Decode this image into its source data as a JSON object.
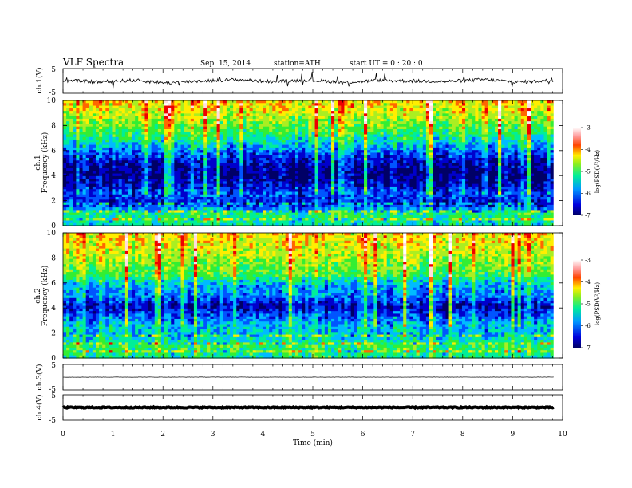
{
  "header": {
    "title": "VLF  Spectra",
    "date": "Sep. 15, 2014",
    "station": "station=ATH",
    "start": "start  UT  =    0  : 20 : 0"
  },
  "colors": {
    "colormap": [
      "#000066",
      "#0000cc",
      "#0055ff",
      "#00bbff",
      "#00ee99",
      "#33ee33",
      "#aaee22",
      "#ffee00",
      "#ff6600",
      "#ee0000",
      "#ffdddd",
      "#ffffff"
    ]
  },
  "chart_data": [
    {
      "type": "line",
      "ylabel": "ch.1(V)",
      "ylim": [
        -5,
        5
      ],
      "yticks": [
        "5",
        "-5"
      ],
      "series": [
        {
          "values": [
            0.2,
            -0.4,
            0.3,
            -0.8,
            0.1,
            0.5,
            -0.3,
            0.4,
            -0.6,
            0.2,
            0.0,
            -0.2,
            0.6,
            -0.5,
            0.3
          ]
        }
      ]
    },
    {
      "type": "heatmap",
      "ylabel_lines": [
        "ch.1",
        "Frequency (kHz)"
      ],
      "ylim": [
        0,
        10
      ],
      "yticks": [
        "0",
        "2",
        "4",
        "6",
        "8",
        "10"
      ],
      "colorbar": {
        "label": "log(PSD(V²/Hz)",
        "ticks": [
          "-3",
          "-4",
          "-5",
          "-6",
          "-7"
        ],
        "range": [
          -7,
          -3
        ]
      },
      "freq_profile_logPSD": [
        -5.6,
        -5.4,
        -6.5,
        -6.2,
        -6.6,
        -6.8,
        -6.6,
        -6.2,
        -5.7,
        -5.3,
        -5.0,
        -4.7,
        -4.5
      ]
    },
    {
      "type": "heatmap",
      "ylabel_lines": [
        "ch.2",
        "Frequency (kHz)"
      ],
      "ylim": [
        0,
        10
      ],
      "yticks": [
        "0",
        "2",
        "4",
        "6",
        "8",
        "10"
      ],
      "colorbar": {
        "label": "log(PSD(V²/Hz)",
        "ticks": [
          "-3",
          "-4",
          "-5",
          "-6",
          "-7"
        ],
        "range": [
          -7,
          -3
        ]
      },
      "freq_profile_logPSD": [
        -5.5,
        -5.3,
        -5.8,
        -5.8,
        -6.2,
        -6.6,
        -6.0,
        -5.9,
        -5.2,
        -5.0,
        -4.8,
        -4.6,
        -4.5
      ]
    },
    {
      "type": "line",
      "ylabel": "ch.3(V)",
      "ylim": [
        -5,
        5
      ],
      "yticks": [
        "5",
        "-5"
      ],
      "series": [
        {
          "values": [
            0.0,
            0.0,
            0.0,
            0.0,
            0.0,
            0.0,
            0.0,
            0.0,
            0.0,
            0.0
          ]
        }
      ]
    },
    {
      "type": "line",
      "ylabel": "ch.4(V)",
      "ylim": [
        -5,
        5
      ],
      "yticks": [
        "5",
        "-5"
      ],
      "series": [
        {
          "values": [
            0.0,
            0.0,
            0.0,
            0.0,
            0.0,
            0.0,
            0.0,
            0.0,
            0.0,
            0.0
          ]
        }
      ]
    }
  ],
  "xaxis": {
    "label": "Time  (min)",
    "ticks": [
      "0",
      "1",
      "2",
      "3",
      "4",
      "5",
      "6",
      "7",
      "8",
      "9",
      "10"
    ],
    "xlim": [
      0,
      10
    ],
    "data_end": 9.82
  }
}
